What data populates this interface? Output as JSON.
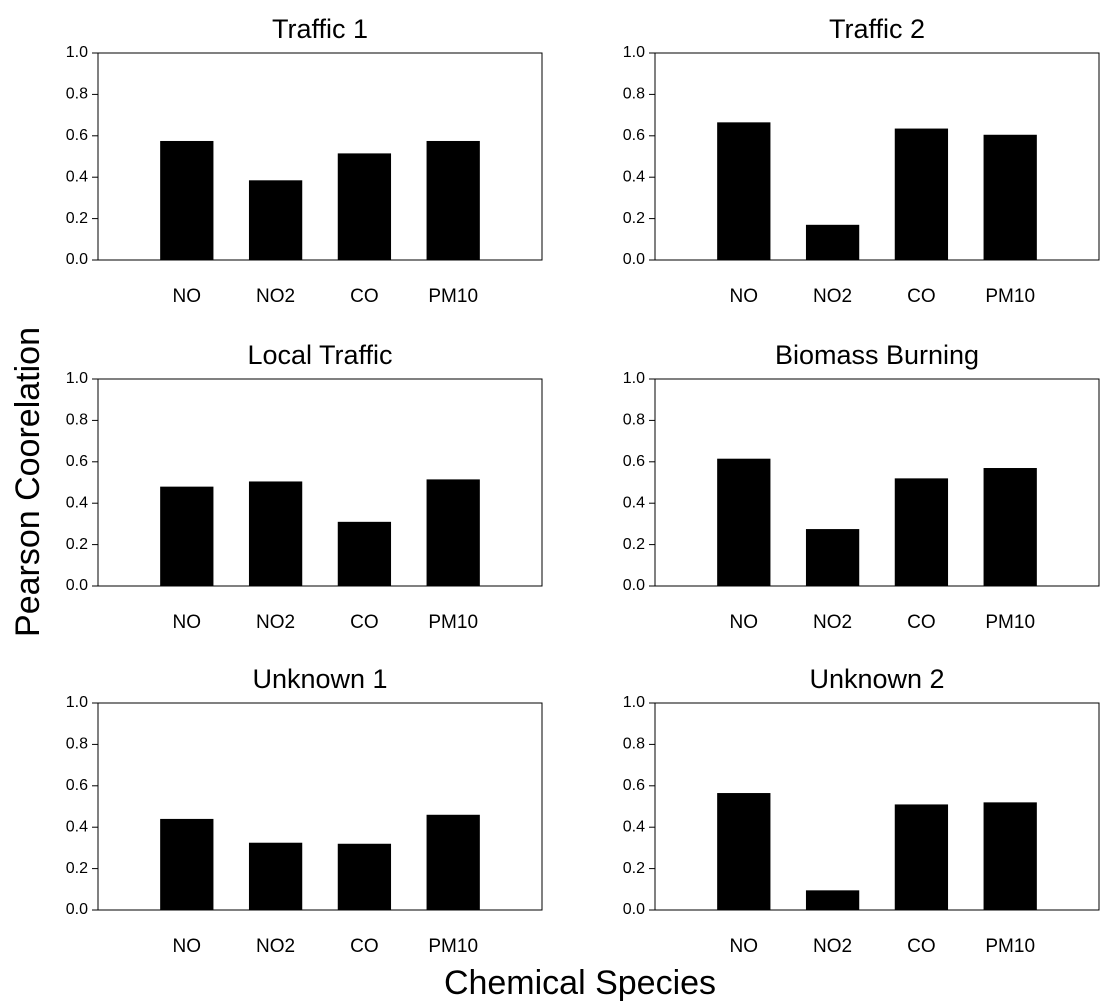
{
  "xlabel": "Chemical Species",
  "ylabel": "Pearson Coorelation",
  "chart_data": [
    {
      "type": "bar",
      "title": "Traffic 1",
      "categories": [
        "NO",
        "NO2",
        "CO",
        "PM10"
      ],
      "values": [
        0.575,
        0.385,
        0.515,
        0.575
      ],
      "color": "#000000",
      "ylim": [
        0,
        1
      ],
      "yticks": [
        {
          "value": 0,
          "label": "0.0"
        },
        0.2,
        0.4,
        0.6,
        0.8,
        {
          "value": 1,
          "label": "1.0"
        }
      ]
    },
    {
      "type": "bar",
      "title": "Traffic 2",
      "categories": [
        "NO",
        "NO2",
        "CO",
        "PM10"
      ],
      "values": [
        0.665,
        0.17,
        0.635,
        0.605
      ],
      "color": "#000000",
      "ylim": [
        0,
        1
      ],
      "yticks": [
        {
          "value": 0,
          "label": "0.0"
        },
        0.2,
        0.4,
        0.6,
        0.8,
        {
          "value": 1,
          "label": "1.0"
        }
      ]
    },
    {
      "type": "bar",
      "title": "Local Traffic",
      "categories": [
        "NO",
        "NO2",
        "CO",
        "PM10"
      ],
      "values": [
        0.48,
        0.505,
        0.31,
        0.515
      ],
      "color": "#000000",
      "ylim": [
        0,
        1
      ],
      "yticks": [
        {
          "value": 0,
          "label": "0.0"
        },
        0.2,
        0.4,
        0.6,
        0.8,
        {
          "value": 1,
          "label": "1.0"
        }
      ]
    },
    {
      "type": "bar",
      "title": "Biomass Burning",
      "categories": [
        "NO",
        "NO2",
        "CO",
        "PM10"
      ],
      "values": [
        0.615,
        0.275,
        0.52,
        0.57
      ],
      "color": "#000000",
      "ylim": [
        0,
        1
      ],
      "yticks": [
        {
          "value": 0,
          "label": "0.0"
        },
        0.2,
        0.4,
        0.6,
        0.8,
        {
          "value": 1,
          "label": "1.0"
        }
      ]
    },
    {
      "type": "bar",
      "title": "Unknown 1",
      "categories": [
        "NO",
        "NO2",
        "CO",
        "PM10"
      ],
      "values": [
        0.44,
        0.325,
        0.32,
        0.46
      ],
      "color": "#000000",
      "ylim": [
        0,
        1
      ],
      "yticks": [
        {
          "value": 0,
          "label": "0.0"
        },
        0.2,
        0.4,
        0.6,
        0.8,
        {
          "value": 1,
          "label": "1.0"
        }
      ]
    },
    {
      "type": "bar",
      "title": "Unknown 2",
      "categories": [
        "NO",
        "NO2",
        "CO",
        "PM10"
      ],
      "values": [
        0.565,
        0.095,
        0.51,
        0.52
      ],
      "color": "#000000",
      "ylim": [
        0,
        1
      ],
      "yticks": [
        {
          "value": 0,
          "label": "0.0"
        },
        0.2,
        0.4,
        0.6,
        0.8,
        {
          "value": 1,
          "label": "1.0"
        }
      ]
    }
  ]
}
